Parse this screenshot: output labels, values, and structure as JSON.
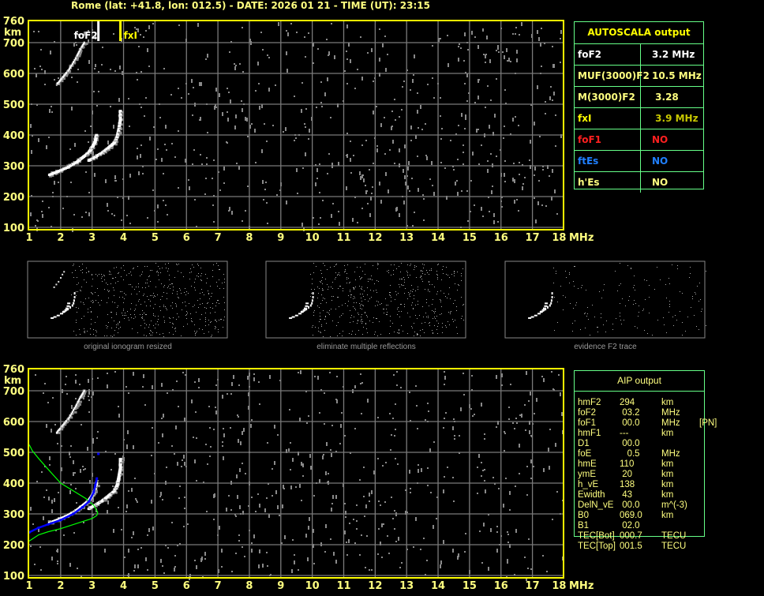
{
  "header": {
    "title": "Rome (lat: +41.8, lon: 012.5) - DATE: 2026 01 21 - TIME (UT): 23:15"
  },
  "colors": {
    "axis": "#ffff00",
    "grid": "#7a7a7a",
    "table_border": "#66ff88",
    "profile": "#00ff00",
    "fit": "#0000ff"
  },
  "chart_data": [
    {
      "type": "scatter",
      "title": "",
      "xlabel": "MHz",
      "ylabel": "km",
      "xlim": [
        1,
        18
      ],
      "ylim": [
        100,
        760
      ],
      "x_ticks": [
        "1",
        "2",
        "3",
        "4",
        "5",
        "6",
        "7",
        "8",
        "9",
        "10",
        "11",
        "12",
        "13",
        "14",
        "15",
        "16",
        "17",
        "18"
      ],
      "y_ticks": [
        "100",
        "200",
        "300",
        "400",
        "500",
        "600",
        "700",
        "760"
      ],
      "grid": true,
      "markers": [
        {
          "label": "foF2",
          "freq": 3.2,
          "color": "#ffffff"
        },
        {
          "label": "fxI",
          "freq": 3.9,
          "color": "#ffff00"
        }
      ],
      "traces": {
        "o_trace": [
          [
            1.65,
            272
          ],
          [
            1.9,
            282
          ],
          [
            2.2,
            295
          ],
          [
            2.5,
            312
          ],
          [
            2.7,
            328
          ],
          [
            2.9,
            345
          ],
          [
            3.0,
            360
          ],
          [
            3.1,
            380
          ],
          [
            3.15,
            405
          ]
        ],
        "x_trace": [
          [
            2.9,
            318
          ],
          [
            3.1,
            330
          ],
          [
            3.3,
            342
          ],
          [
            3.5,
            358
          ],
          [
            3.7,
            375
          ],
          [
            3.8,
            395
          ],
          [
            3.85,
            420
          ],
          [
            3.9,
            450
          ],
          [
            3.9,
            485
          ]
        ],
        "second_hop": [
          [
            1.9,
            565
          ],
          [
            2.1,
            590
          ],
          [
            2.3,
            615
          ],
          [
            2.5,
            650
          ],
          [
            2.65,
            680
          ],
          [
            2.8,
            705
          ]
        ]
      }
    },
    {
      "type": "line",
      "title": "",
      "xlabel": "MHz",
      "ylabel": "km",
      "xlim": [
        1,
        18
      ],
      "ylim": [
        100,
        760
      ],
      "x_ticks": [
        "1",
        "2",
        "3",
        "4",
        "5",
        "6",
        "7",
        "8",
        "9",
        "10",
        "11",
        "12",
        "13",
        "14",
        "15",
        "16",
        "17",
        "18"
      ],
      "y_ticks": [
        "100",
        "200",
        "300",
        "400",
        "500",
        "600",
        "700",
        "760"
      ],
      "grid": true,
      "profile": [
        [
          1.0,
          525
        ],
        [
          1.1,
          505
        ],
        [
          1.3,
          480
        ],
        [
          1.6,
          445
        ],
        [
          2.0,
          400
        ],
        [
          2.4,
          375
        ],
        [
          2.8,
          350
        ],
        [
          3.05,
          328
        ],
        [
          3.18,
          305
        ],
        [
          3.15,
          295
        ],
        [
          3.0,
          285
        ],
        [
          2.6,
          272
        ],
        [
          2.0,
          252
        ],
        [
          1.6,
          242
        ],
        [
          1.3,
          232
        ],
        [
          1.0,
          212
        ]
      ],
      "fit": [
        [
          1.0,
          240
        ],
        [
          1.3,
          255
        ],
        [
          1.6,
          266
        ],
        [
          2.0,
          280
        ],
        [
          2.4,
          300
        ],
        [
          2.7,
          322
        ],
        [
          2.9,
          340
        ],
        [
          3.05,
          370
        ],
        [
          3.1,
          392
        ],
        [
          3.15,
          415
        ],
        [
          3.2,
          495
        ]
      ]
    }
  ],
  "thumbnails": [
    {
      "caption": "original ionogram resized"
    },
    {
      "caption": "eliminate multiple reflections"
    },
    {
      "caption": "evidence F2 trace"
    }
  ],
  "autoscala": {
    "title": "AUTOSCALA output",
    "rows": [
      {
        "key": "foF2",
        "value": "3.2 MHz",
        "key_color": "#ffffff",
        "value_color": "#ffffff"
      },
      {
        "key": "MUF(3000)F2",
        "value": "10.5 MHz",
        "key_color": "#ffff80",
        "value_color": "#ffff80"
      },
      {
        "key": "M(3000)F2",
        "value": " 3.28",
        "key_color": "#ffff80",
        "value_color": "#ffff80"
      },
      {
        "key": "fxI",
        "value": " 3.9 MHz",
        "key_color": "#ffff00",
        "value_color": "#c8c800"
      },
      {
        "key": "foF1",
        "value": "NO",
        "key_color": "#ff2020",
        "value_color": "#ff2020"
      },
      {
        "key": "ftEs",
        "value": "NO",
        "key_color": "#2080ff",
        "value_color": "#2080ff"
      },
      {
        "key": "h'Es",
        "value": "NO",
        "key_color": "#ffff80",
        "value_color": "#ffff80"
      }
    ]
  },
  "aip": {
    "title": "AIP output",
    "rows": [
      {
        "name": "hmF2",
        "value": "294",
        "unit": "km",
        "extra": ""
      },
      {
        "name": "foF2",
        "value": " 03.2",
        "unit": "MHz",
        "extra": ""
      },
      {
        "name": "foF1",
        "value": " 00.0",
        "unit": "MHz",
        "extra": "[PN]"
      },
      {
        "name": "hmF1",
        "value": "---",
        "unit": "km",
        "extra": ""
      },
      {
        "name": "D1",
        "value": " 00.0",
        "unit": "",
        "extra": ""
      },
      {
        "name": "foE",
        "value": "   0.5",
        "unit": "MHz",
        "extra": ""
      },
      {
        "name": "hmE",
        "value": "110",
        "unit": "km",
        "extra": ""
      },
      {
        "name": "ymE",
        "value": " 20",
        "unit": "km",
        "extra": ""
      },
      {
        "name": "h_vE",
        "value": "138",
        "unit": "km",
        "extra": ""
      },
      {
        "name": "Ewidth",
        "value": " 43",
        "unit": "km",
        "extra": ""
      },
      {
        "name": "DelN_vE",
        "value": " 00.0",
        "unit": "m^(-3)",
        "extra": ""
      },
      {
        "name": "B0",
        "value": "069.0",
        "unit": "km",
        "extra": ""
      },
      {
        "name": "B1",
        "value": " 02.0",
        "unit": "",
        "extra": ""
      },
      {
        "name": "TEC[Bot]",
        "value": "000.7",
        "unit": "TECU",
        "extra": ""
      },
      {
        "name": "TEC[Top]",
        "value": "001.5",
        "unit": "TECU",
        "extra": ""
      }
    ]
  }
}
